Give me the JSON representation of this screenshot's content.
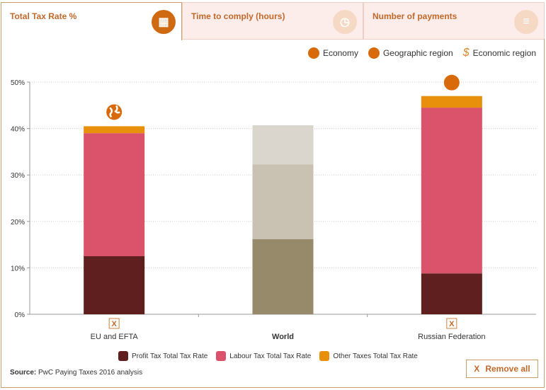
{
  "tabs": [
    {
      "label": "Total Tax Rate %",
      "icon": "calculator-icon",
      "active": true
    },
    {
      "label": "Time to comply (hours)",
      "icon": "clock-icon",
      "active": false
    },
    {
      "label": "Number of payments",
      "icon": "money-stack-icon",
      "active": false
    }
  ],
  "type_legend": {
    "economy": "Economy",
    "geographic": "Geographic region",
    "economic": "Economic region"
  },
  "remove_all": "Remove all",
  "remove_mark": "X",
  "source_label": "Source:",
  "source_text": "PwC Paying Taxes 2016 analysis",
  "colors": {
    "profit": "#5e1f1e",
    "labour": "#db536a",
    "other": "#e8900c",
    "accent": "#d86a0c",
    "world": [
      "#968a6b",
      "#c9c2b3",
      "#dad6cd"
    ]
  },
  "chart_data": {
    "type": "bar",
    "stacked": true,
    "categories": [
      "EU and EFTA",
      "World",
      "Russian Federation"
    ],
    "category_kind": [
      "geographic",
      "world",
      "economy"
    ],
    "series": [
      {
        "name": "Profit Tax Total Tax Rate",
        "values": [
          12.5,
          16.2,
          8.8
        ]
      },
      {
        "name": "Labour Tax Total Tax Rate",
        "values": [
          26.5,
          16.1,
          35.7
        ]
      },
      {
        "name": "Other Taxes Total Tax Rate",
        "values": [
          1.5,
          8.4,
          2.5
        ]
      }
    ],
    "ylim": [
      0,
      50
    ],
    "yticks": [
      "0%",
      "10%",
      "20%",
      "30%",
      "40%",
      "50%"
    ],
    "grid": true,
    "legend": "bottom"
  }
}
